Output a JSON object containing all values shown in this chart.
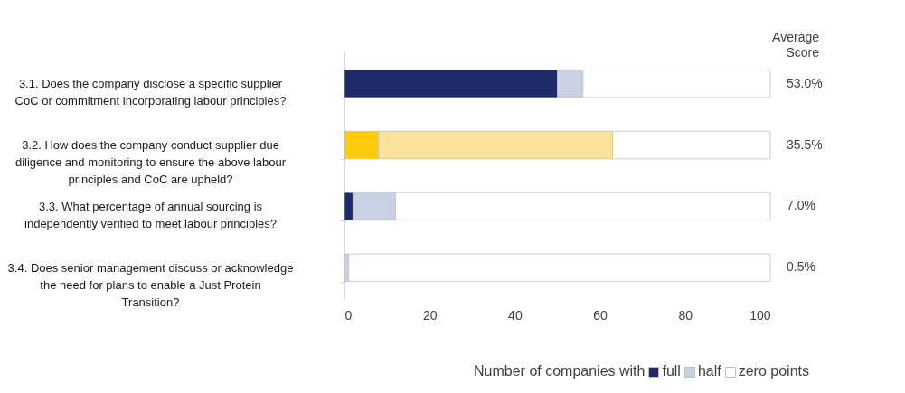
{
  "chart_data": {
    "type": "bar",
    "orientation": "horizontal",
    "stacked": true,
    "xlabel": "Number of companies with",
    "y2label": "Average Score",
    "legend": "bottom",
    "categories": [
      "3.1. Does the company disclose a specific supplier CoC or commitment incorporating labour principles?",
      "3.2. How does the company conduct supplier due diligence and monitoring to ensure the above labour principles and CoC are upheld?",
      "3.3. What percentage of annual sourcing is independently verified to meet labour principles?",
      "3.4. Does senior management discuss or acknowledge the need for plans to enable a Just Protein Transition?"
    ],
    "series": [
      {
        "name": "full",
        "color": "#1f2a6b",
        "colors": [
          "#1f2a6b",
          "#ffc90e",
          "#1f2a6b",
          "#1f2a6b"
        ],
        "values": [
          50,
          8,
          2,
          0
        ]
      },
      {
        "name": "half",
        "color": "#c9d0e4",
        "colors": [
          "#c9d0e4",
          "#fbe29a",
          "#c9d0e4",
          "#c9d0e4"
        ],
        "values": [
          6,
          55,
          10,
          1
        ]
      },
      {
        "name": "zero points",
        "color": "#ffffff",
        "values": [
          44,
          37,
          88,
          99
        ]
      }
    ],
    "annotations": [
      "53.0%",
      "35.5%",
      "7.0%",
      "0.5%"
    ],
    "xlim": [
      0,
      100
    ],
    "xticks": [
      0,
      20,
      40,
      60,
      80,
      100
    ],
    "grid": false
  }
}
